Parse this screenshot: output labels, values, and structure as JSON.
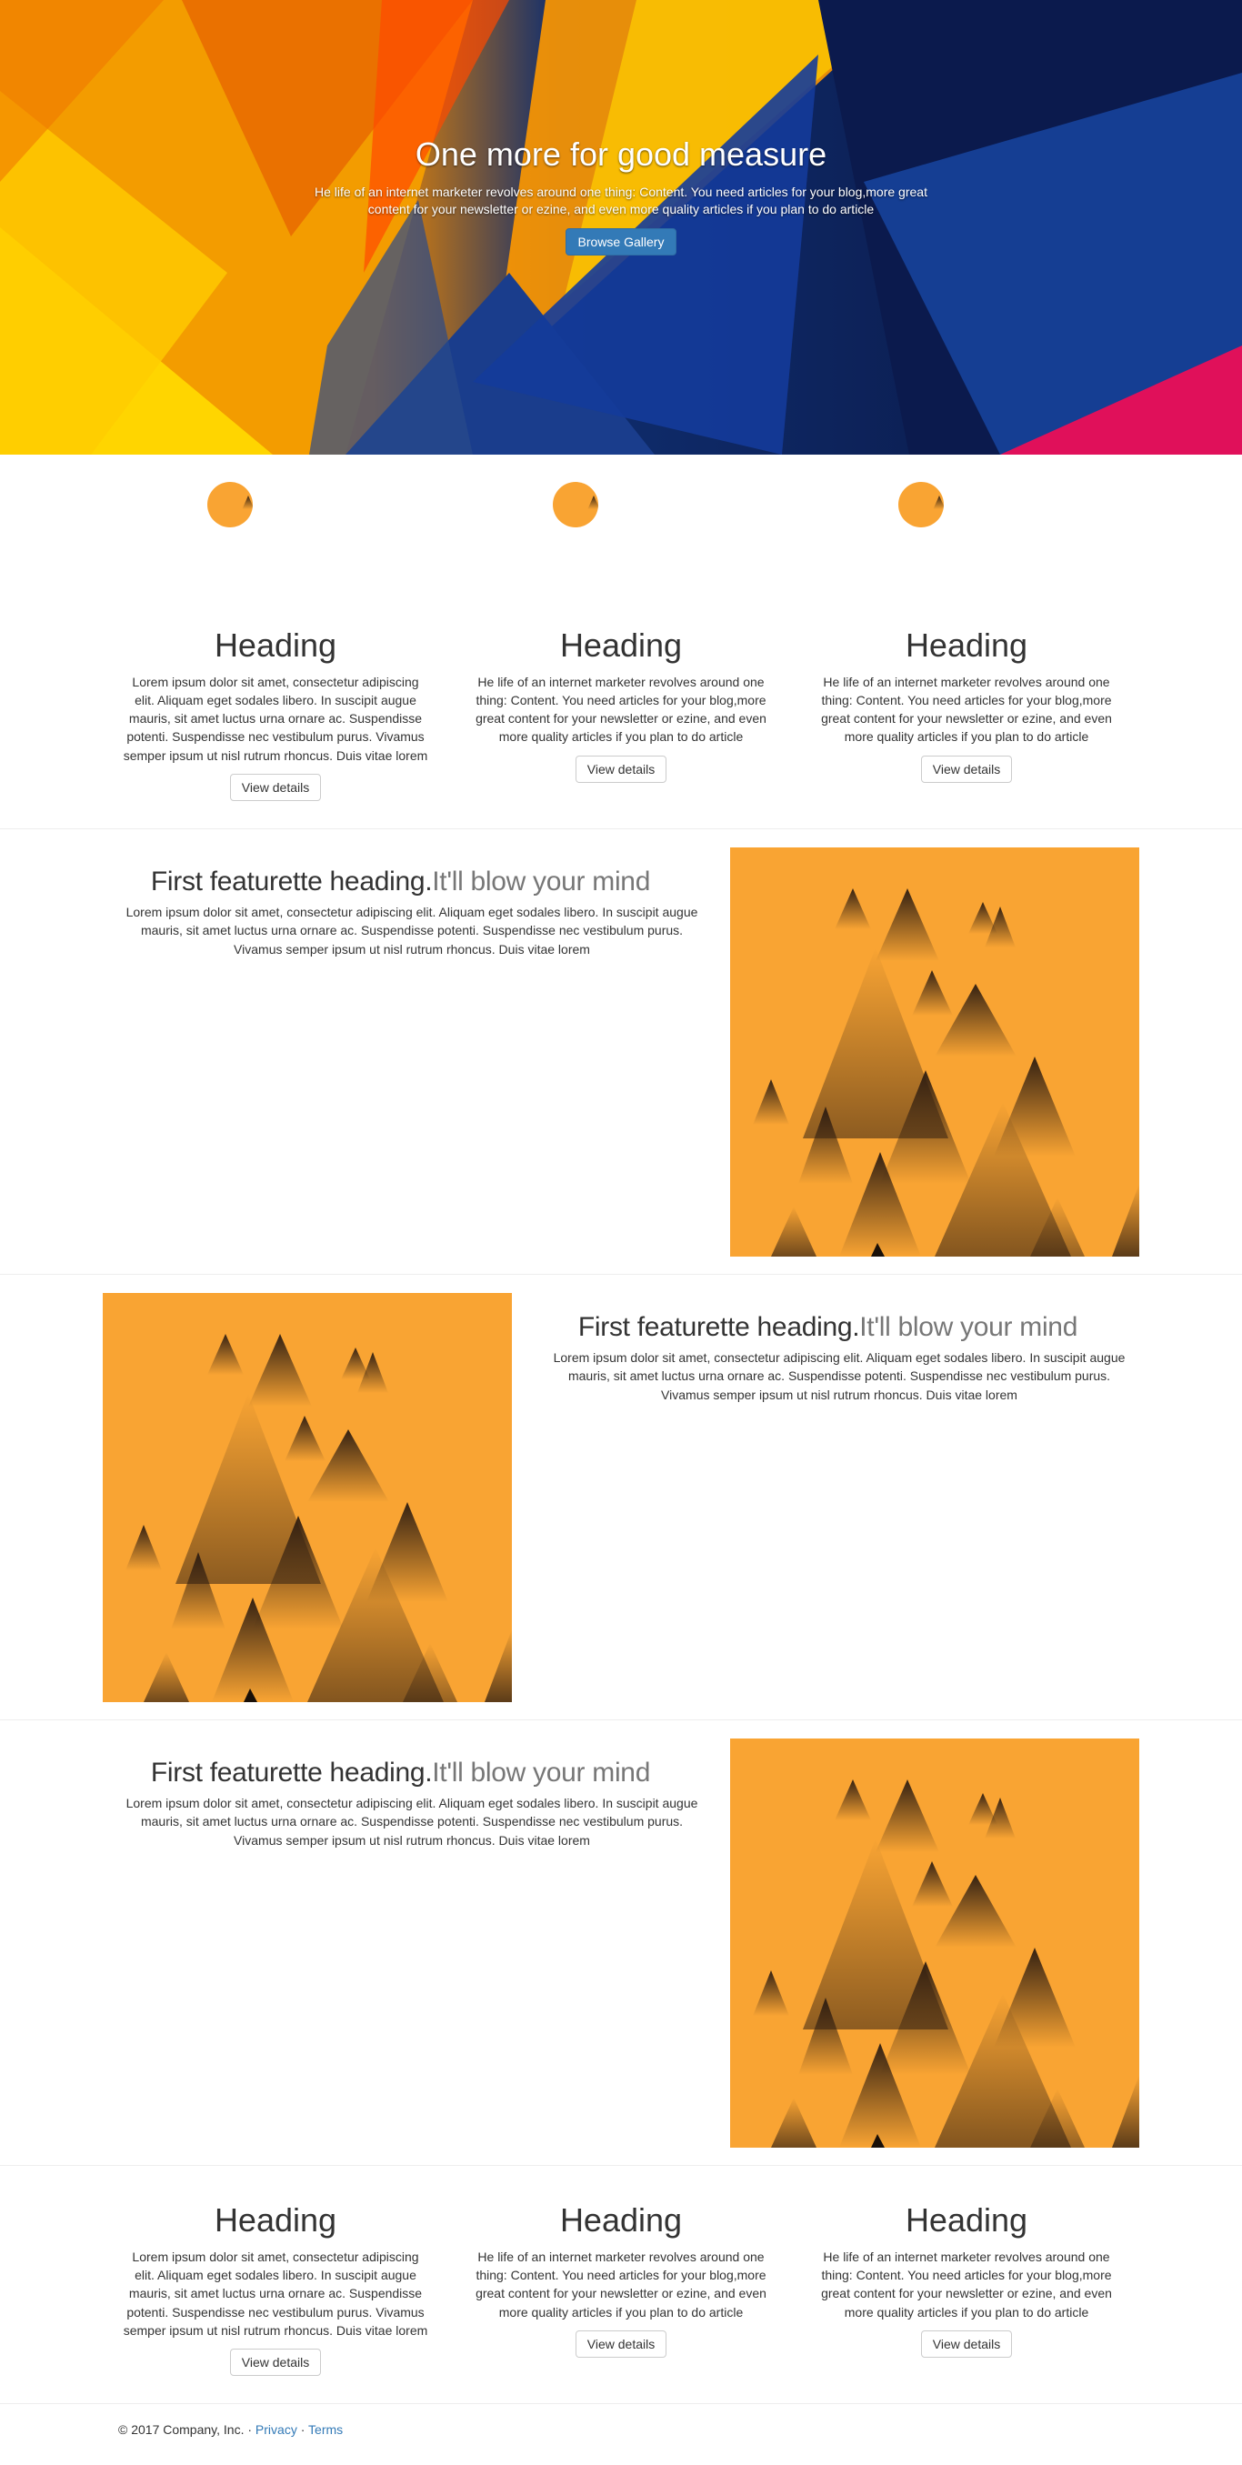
{
  "hero": {
    "title": "One more for good measure",
    "text": "He life of an internet marketer revolves around one thing: Content. You need articles for your blog,more great content for your newsletter or ezine, and even more quality articles if you plan to do article",
    "button_label": "Browse Gallery"
  },
  "marketing_top": [
    {
      "heading": "Heading",
      "text": "Lorem ipsum dolor sit amet, consectetur adipiscing elit. Aliquam eget sodales libero. In suscipit augue mauris, sit amet luctus urna ornare ac. Suspendisse potenti. Suspendisse nec vestibulum purus. Vivamus semper ipsum ut nisl rutrum rhoncus. Duis vitae lorem",
      "button_label": "View details"
    },
    {
      "heading": "Heading",
      "text": "He life of an internet marketer revolves around one thing: Content. You need articles for your blog,more great content for your newsletter or ezine, and even more quality articles if you plan to do article",
      "button_label": "View details"
    },
    {
      "heading": "Heading",
      "text": "He life of an internet marketer revolves around one thing: Content. You need articles for your blog,more great content for your newsletter or ezine, and even more quality articles if you plan to do article",
      "button_label": "View details"
    }
  ],
  "featurettes": [
    {
      "heading": "First featurette heading.",
      "muted": "It'll blow your mind",
      "text": "Lorem ipsum dolor sit amet, consectetur adipiscing elit. Aliquam eget sodales libero. In suscipit augue mauris, sit amet luctus urna ornare ac. Suspendisse potenti. Suspendisse nec vestibulum purus. Vivamus semper ipsum ut nisl rutrum rhoncus. Duis vitae lorem"
    },
    {
      "heading": "First featurette heading.",
      "muted": "It'll blow your mind",
      "text": "Lorem ipsum dolor sit amet, consectetur adipiscing elit. Aliquam eget sodales libero. In suscipit augue mauris, sit amet luctus urna ornare ac. Suspendisse potenti. Suspendisse nec vestibulum purus. Vivamus semper ipsum ut nisl rutrum rhoncus. Duis vitae lorem"
    },
    {
      "heading": "First featurette heading.",
      "muted": "It'll blow your mind",
      "text": "Lorem ipsum dolor sit amet, consectetur adipiscing elit. Aliquam eget sodales libero. In suscipit augue mauris, sit amet luctus urna ornare ac. Suspendisse potenti. Suspendisse nec vestibulum purus. Vivamus semper ipsum ut nisl rutrum rhoncus. Duis vitae lorem"
    }
  ],
  "marketing_bottom": [
    {
      "heading": "Heading",
      "text": "Lorem ipsum dolor sit amet, consectetur adipiscing elit. Aliquam eget sodales libero. In suscipit augue mauris, sit amet luctus urna ornare ac. Suspendisse potenti. Suspendisse nec vestibulum purus. Vivamus semper ipsum ut nisl rutrum rhoncus. Duis vitae lorem",
      "button_label": "View details"
    },
    {
      "heading": "Heading",
      "text": "He life of an internet marketer revolves around one thing: Content. You need articles for your blog,more great content for your newsletter or ezine, and even more quality articles if you plan to do article",
      "button_label": "View details"
    },
    {
      "heading": "Heading",
      "text": "He life of an internet marketer revolves around one thing: Content. You need articles for your blog,more great content for your newsletter or ezine, and even more quality articles if you plan to do article",
      "button_label": "View details"
    }
  ],
  "footer": {
    "copyright": "© 2017 Company, Inc.",
    "sep1": " · ",
    "privacy": "Privacy",
    "sep2": " · ",
    "terms": "Terms"
  },
  "colors": {
    "accent": "#337ab7",
    "tile": "#f9a433"
  }
}
